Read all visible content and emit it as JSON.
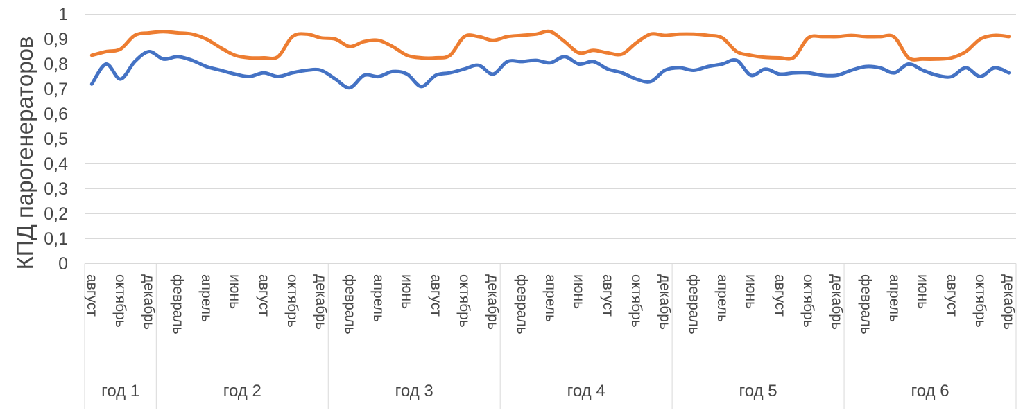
{
  "chart_data": {
    "type": "line",
    "title": "",
    "xlabel": "",
    "ylabel": "КПД парогенераторов",
    "ylim": [
      0,
      1
    ],
    "ytick_step": 0.1,
    "ytick_labels": [
      "0",
      "0,1",
      "0,2",
      "0,3",
      "0,4",
      "0,5",
      "0,6",
      "0,7",
      "0,8",
      "0,9",
      "1"
    ],
    "grid": "horizontal",
    "legend": "none",
    "grid_color": "#d9d9d9",
    "axis_text_color": "#474747",
    "x_month_labels": [
      "август",
      "октябрь",
      "декабрь",
      "февраль",
      "апрель",
      "июнь",
      "август",
      "октябрь",
      "декабрь",
      "февраль",
      "апрель",
      "июнь",
      "август",
      "октябрь",
      "декабрь",
      "февраль",
      "апрель",
      "июнь",
      "август",
      "октябрь",
      "декабрь",
      "февраль",
      "апрель",
      "июнь",
      "август",
      "октябрь",
      "декабрь",
      "февраль",
      "апрель",
      "июнь",
      "август",
      "октябрь",
      "декабрь"
    ],
    "x_label_every_n_points": 2,
    "year_groups": [
      {
        "label": "год 1",
        "points": 5
      },
      {
        "label": "год 2",
        "points": 12
      },
      {
        "label": "год 3",
        "points": 12
      },
      {
        "label": "год 4",
        "points": 12
      },
      {
        "label": "год 5",
        "points": 12
      },
      {
        "label": "год 6",
        "points": 12
      }
    ],
    "series": [
      {
        "name": "series-orange",
        "color": "#ED7D31",
        "values": [
          0.835,
          0.85,
          0.86,
          0.915,
          0.925,
          0.93,
          0.925,
          0.92,
          0.9,
          0.865,
          0.835,
          0.825,
          0.825,
          0.83,
          0.91,
          0.92,
          0.905,
          0.9,
          0.87,
          0.89,
          0.895,
          0.87,
          0.835,
          0.825,
          0.825,
          0.835,
          0.91,
          0.91,
          0.895,
          0.91,
          0.915,
          0.92,
          0.93,
          0.89,
          0.845,
          0.855,
          0.845,
          0.84,
          0.885,
          0.92,
          0.915,
          0.92,
          0.92,
          0.915,
          0.905,
          0.85,
          0.835,
          0.827,
          0.825,
          0.827,
          0.905,
          0.91,
          0.91,
          0.915,
          0.91,
          0.91,
          0.908,
          0.825,
          0.82,
          0.82,
          0.825,
          0.85,
          0.9,
          0.915,
          0.91
        ]
      },
      {
        "name": "series-blue",
        "color": "#4472C4",
        "values": [
          0.72,
          0.8,
          0.74,
          0.81,
          0.85,
          0.82,
          0.83,
          0.815,
          0.79,
          0.775,
          0.76,
          0.75,
          0.765,
          0.75,
          0.765,
          0.775,
          0.775,
          0.74,
          0.705,
          0.755,
          0.75,
          0.77,
          0.76,
          0.71,
          0.755,
          0.765,
          0.78,
          0.795,
          0.76,
          0.81,
          0.81,
          0.815,
          0.805,
          0.83,
          0.8,
          0.81,
          0.78,
          0.765,
          0.74,
          0.73,
          0.775,
          0.785,
          0.775,
          0.79,
          0.8,
          0.815,
          0.755,
          0.78,
          0.76,
          0.765,
          0.765,
          0.755,
          0.755,
          0.775,
          0.79,
          0.785,
          0.765,
          0.8,
          0.775,
          0.755,
          0.75,
          0.785,
          0.75,
          0.785,
          0.765
        ]
      }
    ]
  }
}
